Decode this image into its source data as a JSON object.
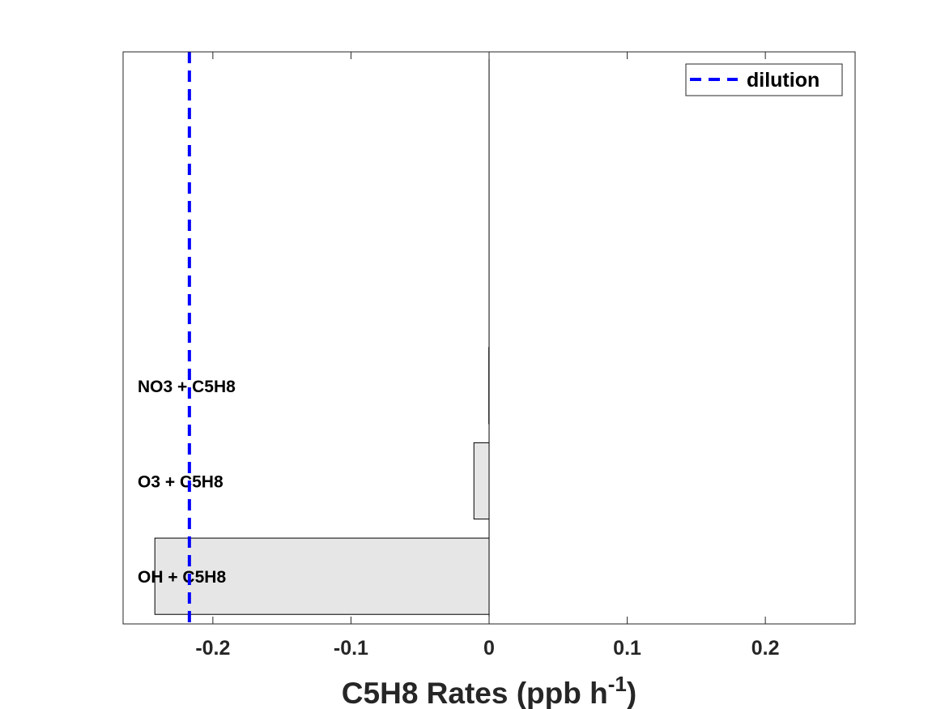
{
  "chart_data": {
    "type": "bar",
    "orientation": "horizontal",
    "categories": [
      "OH + C5H8",
      "O3 + C5H8",
      "NO3 + C5H8"
    ],
    "values": [
      -0.242,
      -0.011,
      -0.0002
    ],
    "xlim": [
      -0.265,
      0.265
    ],
    "xticks": [
      -0.2,
      -0.1,
      0,
      0.1,
      0.2
    ],
    "xtick_labels": [
      "-0.2",
      "-0.1",
      "0",
      "0.1",
      "0.2"
    ],
    "xlabel": {
      "main": "C5H8 Rates (ppb h",
      "superscript": "-1",
      "close": ")"
    },
    "slots": 6,
    "dilution": {
      "name": "dilution",
      "value": -0.217,
      "color": "#0000ff",
      "style": "dashed"
    },
    "legend_position": "top-right",
    "bar_color": "#e6e6e6",
    "bar_edge_color": "#000000",
    "grid": false
  }
}
